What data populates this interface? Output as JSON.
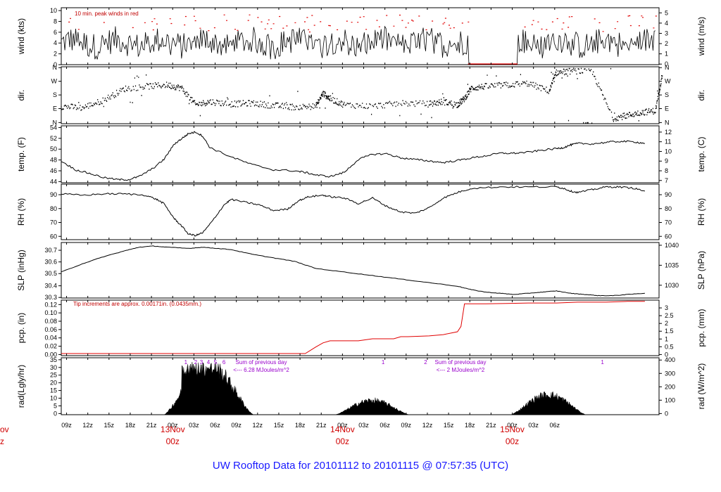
{
  "title": "UW Rooftop Data for 20101112  to  20101115 @ 07:57:35  (UTC)",
  "colors": {
    "data": "#000000",
    "peak": "#e00000",
    "precip": "#e00000",
    "note": "#c00000",
    "solar": "#9900cc",
    "title": "#1a1aff",
    "date": "#d00000"
  },
  "x_axis": {
    "hour_ticks": [
      "09z",
      "12z",
      "15z",
      "18z",
      "21z",
      "00z",
      "03z",
      "06z",
      "09z",
      "12z",
      "15z",
      "18z",
      "21z",
      "00z",
      "03z",
      "06z",
      "09z",
      "12z",
      "15z",
      "18z",
      "21z",
      "00z",
      "03z",
      "06z"
    ],
    "date_labels": [
      {
        "line1": "ov",
        "line2": "z"
      },
      {
        "line1": "13Nov",
        "line2": "00z"
      },
      {
        "line1": "14Nov",
        "line2": "00z"
      },
      {
        "line1": "15Nov",
        "line2": "00z"
      }
    ]
  },
  "chart_data": [
    {
      "type": "line",
      "name": "wind",
      "ylabel_left": "wind (kts)",
      "ylabel_right": "wind (m/s)",
      "left_ticks": [
        "0",
        "2",
        "4",
        "6",
        "8",
        "10"
      ],
      "right_ticks": [
        "0",
        "1",
        "2",
        "3",
        "4",
        "5"
      ],
      "ylim": [
        0,
        10.5
      ],
      "annotation": "10 min. peak winds in red",
      "calm_interval_hours": [
        57.5,
        64.5
      ],
      "typical_speed_kts": 4,
      "typical_peak_kts": 6
    },
    {
      "type": "scatter",
      "name": "direction",
      "ylabel_left": "dir.",
      "ylabel_right": "dir.",
      "left_ticks": [
        "N",
        "E",
        "S",
        "W",
        "N"
      ],
      "right_ticks": [
        "N",
        "E",
        "S",
        "W",
        "N"
      ],
      "points": [
        [
          0,
          110
        ],
        [
          3,
          100
        ],
        [
          6,
          150
        ],
        [
          9,
          225
        ],
        [
          12,
          240
        ],
        [
          15,
          250
        ],
        [
          17,
          230
        ],
        [
          19,
          120
        ],
        [
          21,
          140
        ],
        [
          24,
          125
        ],
        [
          27,
          130
        ],
        [
          30,
          115
        ],
        [
          33,
          105
        ],
        [
          36,
          110
        ],
        [
          37,
          195
        ],
        [
          38,
          160
        ],
        [
          40,
          120
        ],
        [
          44,
          110
        ],
        [
          48,
          130
        ],
        [
          52,
          125
        ],
        [
          54,
          140
        ],
        [
          56,
          120
        ],
        [
          57,
          160
        ],
        [
          58,
          230
        ],
        [
          60,
          240
        ],
        [
          63,
          250
        ],
        [
          66,
          260
        ],
        [
          69,
          210
        ],
        [
          70,
          330
        ],
        [
          72,
          340
        ],
        [
          75,
          345
        ],
        [
          78,
          30
        ],
        [
          80,
          50
        ],
        [
          82,
          70
        ],
        [
          84,
          80
        ],
        [
          85,
          330
        ]
      ]
    },
    {
      "type": "line",
      "name": "temperature",
      "ylabel_left": "temp. (F)",
      "ylabel_right": "temp. (C)",
      "left_ticks": [
        "44",
        "46",
        "48",
        "50",
        "52",
        "54"
      ],
      "right_ticks": [
        "7",
        "8",
        "9",
        "10",
        "11",
        "12"
      ],
      "ylim": [
        44,
        55
      ],
      "x": [
        0,
        2,
        4,
        6,
        8,
        9.5,
        11,
        13,
        14.5,
        16,
        17,
        18,
        19,
        20,
        21,
        24,
        27,
        30,
        33,
        34.5,
        36,
        38,
        40,
        42,
        44,
        46,
        48,
        50,
        52,
        54,
        56,
        58,
        60,
        62,
        64,
        66,
        68,
        70,
        71,
        72,
        73,
        75,
        77,
        79,
        81,
        82.5
      ],
      "values": [
        48.2,
        46.5,
        45.8,
        45.0,
        44.6,
        44.6,
        45.2,
        46.8,
        48.5,
        51.5,
        52.5,
        53.5,
        53.8,
        53.0,
        50.8,
        49.0,
        47.5,
        46.5,
        46.3,
        46.0,
        45.5,
        45.2,
        46.0,
        48.5,
        49.5,
        49.6,
        48.8,
        48.5,
        48.2,
        47.9,
        48.3,
        48.8,
        49.2,
        49.7,
        49.7,
        49.9,
        50.3,
        50.6,
        50.8,
        51.3,
        51.6,
        51.5,
        51.8,
        52.0,
        51.9,
        51.6
      ]
    },
    {
      "type": "line",
      "name": "relative_humidity",
      "ylabel_left": "RH (%)",
      "ylabel_right": "RH (%)",
      "left_ticks": [
        "60",
        "70",
        "80",
        "90"
      ],
      "right_ticks": [
        "60",
        "70",
        "80",
        "90"
      ],
      "ylim": [
        57,
        97
      ],
      "x": [
        0,
        3,
        6,
        9,
        12,
        13.5,
        14.5,
        16,
        17,
        18,
        19,
        20,
        21,
        23,
        24,
        26,
        28,
        30,
        32,
        33.5,
        35,
        37,
        38,
        40,
        42,
        44,
        46,
        48,
        50,
        52,
        54,
        56,
        58,
        62,
        66,
        70,
        71,
        72,
        73,
        75,
        77,
        79,
        81,
        82.5
      ],
      "values": [
        90,
        89,
        90,
        90,
        89,
        86,
        83,
        72,
        67,
        61,
        60,
        62,
        68,
        82,
        86,
        84,
        82,
        78,
        79,
        85,
        88,
        89,
        88,
        87,
        83,
        87,
        81,
        77,
        76,
        80,
        87,
        91,
        94,
        95,
        95,
        95,
        94,
        92,
        91,
        93,
        95,
        95,
        94,
        92
      ]
    },
    {
      "type": "line",
      "name": "sea_level_pressure",
      "ylabel_left": "SLP (inHg)",
      "ylabel_right": "SLP (hPa)",
      "left_ticks": [
        "30.3",
        "30.4",
        "30.5",
        "30.6",
        "30.7"
      ],
      "right_ticks": [
        "1030",
        "1035",
        "1040"
      ],
      "ylim": [
        30.3,
        30.77
      ],
      "x": [
        0,
        3,
        6,
        9,
        11,
        13,
        15,
        18,
        20,
        22,
        24,
        27,
        30,
        33,
        36,
        40,
        44,
        48,
        52,
        56,
        58,
        60,
        62,
        64,
        66,
        68,
        70,
        72,
        74,
        76,
        78,
        80,
        82.5
      ],
      "values": [
        30.52,
        30.59,
        30.65,
        30.7,
        30.73,
        30.74,
        30.73,
        30.72,
        30.73,
        30.72,
        30.71,
        30.67,
        30.64,
        30.61,
        30.55,
        30.52,
        30.49,
        30.46,
        30.43,
        30.4,
        30.37,
        30.35,
        30.34,
        30.33,
        30.34,
        30.35,
        30.36,
        30.34,
        30.33,
        30.32,
        30.32,
        30.33,
        30.34
      ]
    },
    {
      "type": "line",
      "name": "precipitation",
      "ylabel_left": "pcp. (in)",
      "ylabel_right": "pcp. (mm)",
      "left_ticks": [
        "0.00",
        "0.02",
        "0.04",
        "0.06",
        "0.08",
        "0.10",
        "0.12"
      ],
      "right_ticks": [
        "0",
        "0.5",
        "1",
        "1.5",
        "2",
        "2.5",
        "3"
      ],
      "ylim": [
        0,
        0.13
      ],
      "annotation": "Tip increments are approx. 0.00171in. (0.0435mm.)",
      "x": [
        0,
        34.5,
        36,
        37,
        38,
        42,
        44,
        47,
        48,
        49,
        52,
        54,
        56,
        56.5,
        57,
        60,
        63,
        66,
        70,
        73,
        77,
        80,
        82.5
      ],
      "values": [
        0,
        0,
        0.016,
        0.026,
        0.031,
        0.031,
        0.036,
        0.036,
        0.041,
        0.041,
        0.043,
        0.046,
        0.053,
        0.066,
        0.121,
        0.121,
        0.122,
        0.123,
        0.123,
        0.125,
        0.125,
        0.127,
        0.127
      ]
    },
    {
      "type": "area",
      "name": "solar_radiation",
      "ylabel_left": "rad(Lgly/hr)",
      "ylabel_right": "rad (W/m^2)",
      "left_ticks": [
        "0",
        "5",
        "10",
        "15",
        "20",
        "25",
        "30",
        "35"
      ],
      "right_ticks": [
        "0",
        "100",
        "200",
        "300",
        "400"
      ],
      "ylim": [
        0,
        38
      ],
      "daily_sum_notes": [
        {
          "line1": "Sum of previous day",
          "line2": "<--- 6.28 MJoules/m^2"
        },
        {
          "line1": "Sum of previous day",
          "line2": "<--- 2 MJoules/m^2"
        }
      ],
      "peaks_lgly_hr": [
        34,
        10,
        14
      ],
      "markers": [
        "1",
        "2",
        "3",
        "4",
        "5",
        "6",
        "1",
        "2",
        "1"
      ]
    }
  ]
}
